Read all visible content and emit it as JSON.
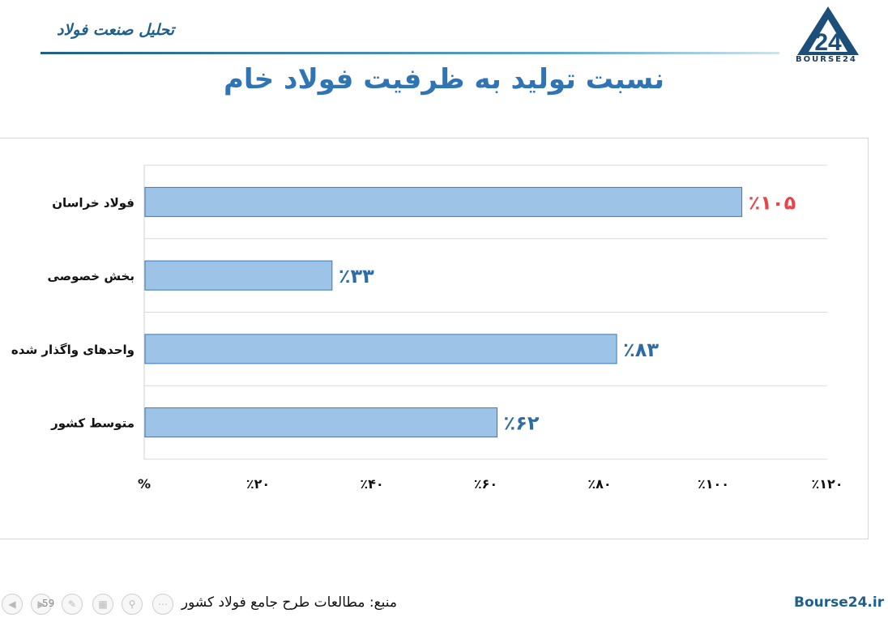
{
  "header": {
    "title": "تحلیل صنعت فولاد"
  },
  "logo": {
    "text": "BOURSE24"
  },
  "title": "نسبت تولید به ظرفیت فولاد خام",
  "chart_data": {
    "type": "bar",
    "orientation": "horizontal",
    "categories": [
      "فولاد خراسان",
      "بخش خصوصی",
      "واحدهای واگذار شده",
      "متوسط کشور"
    ],
    "values": [
      105,
      33,
      83,
      62
    ],
    "data_labels": [
      "٪۱۰۵",
      "٪۳۳",
      "٪۸۳",
      "٪۶۲"
    ],
    "highlight_color": "#e8444a",
    "label_color": "#2e6da4",
    "bar_color": "#9dc3e6",
    "bar_stroke": "#3a78b5",
    "x_ticks": [
      0,
      20,
      40,
      60,
      80,
      100,
      120
    ],
    "x_tick_labels": [
      "%",
      "٪۲۰",
      "٪۴۰",
      "٪۶۰",
      "٪۸۰",
      "٪۱۰۰",
      "٪۱۲۰"
    ],
    "xlim": [
      0,
      120
    ],
    "grid": true
  },
  "footer": {
    "source": "منبع: مطالعات طرح جامع فولاد کشور",
    "site": "Bourse24.ir",
    "page": "59"
  }
}
